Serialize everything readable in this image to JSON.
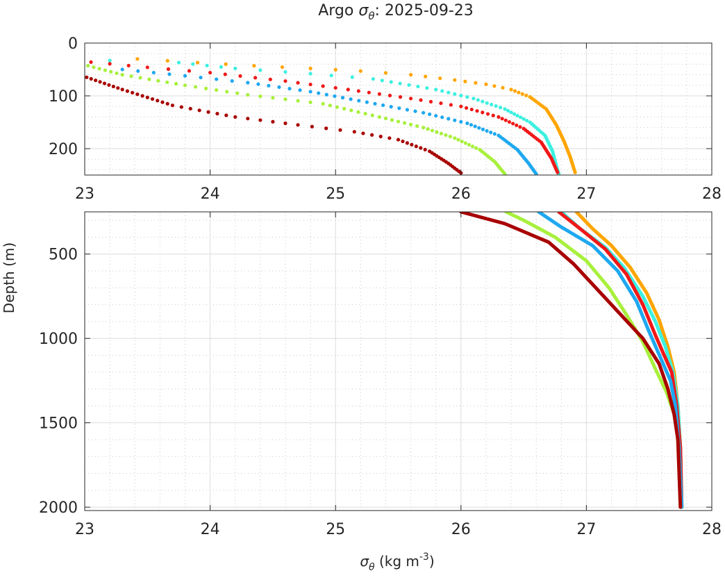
{
  "chart_data": {
    "type": "scatter",
    "title": {
      "prefix": "Argo ",
      "symbol": "σ",
      "subscript": "θ",
      "suffix": ": 2025-09-23"
    },
    "xlabel": {
      "symbol": "σ",
      "subscript": "θ",
      "unit_prefix": " (kg m",
      "superscript": "-3",
      "unit_suffix": ")"
    },
    "ylabel": "Depth (m)",
    "grid": true,
    "panels": [
      {
        "name": "upper",
        "xlim": [
          23,
          28
        ],
        "ylim": [
          0,
          250
        ],
        "y_reversed": true,
        "xticks": [
          "23",
          "24",
          "25",
          "26",
          "27",
          "28"
        ],
        "yticks": [
          "0",
          "100",
          "200"
        ],
        "xtick_values": [
          23,
          24,
          25,
          26,
          27,
          28
        ],
        "ytick_values": [
          0,
          100,
          200
        ],
        "xminor": [
          23.2,
          23.4,
          23.6,
          23.8,
          24.2,
          24.4,
          24.6,
          24.8,
          25.2,
          25.4,
          25.6,
          25.8,
          26.2,
          26.4,
          26.6,
          26.8,
          27.2,
          27.4,
          27.6,
          27.8
        ],
        "yminor": [
          20,
          40,
          60,
          80,
          120,
          140,
          160,
          180,
          220,
          240
        ]
      },
      {
        "name": "lower",
        "xlim": [
          23,
          28
        ],
        "ylim": [
          250,
          2020
        ],
        "y_reversed": true,
        "xticks": [
          "23",
          "24",
          "25",
          "26",
          "27",
          "28"
        ],
        "yticks": [
          "500",
          "1000",
          "1500",
          "2000"
        ],
        "xtick_values": [
          23,
          24,
          25,
          26,
          27,
          28
        ],
        "ytick_values": [
          500,
          1000,
          1500,
          2000
        ],
        "xminor": [
          23.2,
          23.4,
          23.6,
          23.8,
          24.2,
          24.4,
          24.6,
          24.8,
          25.2,
          25.4,
          25.6,
          25.8,
          26.2,
          26.4,
          26.6,
          26.8,
          27.2,
          27.4,
          27.6,
          27.8
        ],
        "yminor": [
          300,
          400,
          600,
          700,
          800,
          900,
          1100,
          1200,
          1300,
          1400,
          1600,
          1700,
          1800,
          1900
        ]
      }
    ],
    "series": [
      {
        "name": "profile-orange",
        "color": "#FFA500",
        "upper": [
          [
            23.42,
            30
          ],
          [
            23.9,
            37
          ],
          [
            24.35,
            43
          ],
          [
            24.8,
            48
          ],
          [
            25.2,
            53
          ],
          [
            25.6,
            60
          ],
          [
            25.95,
            70
          ],
          [
            26.2,
            78
          ],
          [
            26.4,
            88
          ],
          [
            26.55,
            102
          ],
          [
            26.68,
            125
          ],
          [
            26.76,
            155
          ],
          [
            26.82,
            185
          ],
          [
            26.87,
            215
          ],
          [
            26.91,
            245
          ]
        ],
        "lower": [
          [
            26.92,
            250
          ],
          [
            27.05,
            350
          ],
          [
            27.2,
            450
          ],
          [
            27.35,
            580
          ],
          [
            27.48,
            730
          ],
          [
            27.58,
            890
          ],
          [
            27.65,
            1050
          ],
          [
            27.7,
            1200
          ],
          [
            27.73,
            1400
          ],
          [
            27.75,
            1650
          ],
          [
            27.76,
            2000
          ]
        ]
      },
      {
        "name": "profile-cyan",
        "color": "#3CF0E0",
        "upper": [
          [
            23.2,
            33
          ],
          [
            23.75,
            37
          ],
          [
            24.2,
            48
          ],
          [
            24.8,
            58
          ],
          [
            25.3,
            68
          ],
          [
            25.8,
            88
          ],
          [
            26.1,
            105
          ],
          [
            26.35,
            125
          ],
          [
            26.55,
            150
          ],
          [
            26.67,
            175
          ],
          [
            26.73,
            205
          ],
          [
            26.76,
            232
          ],
          [
            26.78,
            248
          ]
        ],
        "lower": [
          [
            26.8,
            250
          ],
          [
            26.95,
            350
          ],
          [
            27.15,
            460
          ],
          [
            27.3,
            580
          ],
          [
            27.45,
            750
          ],
          [
            27.55,
            900
          ],
          [
            27.63,
            1050
          ],
          [
            27.69,
            1200
          ],
          [
            27.73,
            1400
          ],
          [
            27.75,
            1650
          ],
          [
            27.76,
            2000
          ]
        ]
      },
      {
        "name": "profile-red",
        "color": "#F01818",
        "upper": [
          [
            23.05,
            36
          ],
          [
            23.5,
            46
          ],
          [
            24.0,
            56
          ],
          [
            24.6,
            72
          ],
          [
            25.1,
            88
          ],
          [
            25.6,
            105
          ],
          [
            26.0,
            120
          ],
          [
            26.3,
            140
          ],
          [
            26.5,
            162
          ],
          [
            26.64,
            188
          ],
          [
            26.72,
            218
          ],
          [
            26.77,
            245
          ]
        ],
        "lower": [
          [
            26.78,
            250
          ],
          [
            26.95,
            350
          ],
          [
            27.15,
            470
          ],
          [
            27.32,
            620
          ],
          [
            27.45,
            800
          ],
          [
            27.55,
            980
          ],
          [
            27.62,
            1100
          ],
          [
            27.68,
            1200
          ],
          [
            27.72,
            1400
          ],
          [
            27.75,
            1650
          ],
          [
            27.76,
            2000
          ]
        ]
      },
      {
        "name": "profile-blue",
        "color": "#1EA8F0",
        "upper": [
          [
            23.3,
            50
          ],
          [
            23.8,
            62
          ],
          [
            24.3,
            75
          ],
          [
            24.8,
            92
          ],
          [
            25.25,
            112
          ],
          [
            25.7,
            132
          ],
          [
            26.05,
            152
          ],
          [
            26.3,
            175
          ],
          [
            26.45,
            202
          ],
          [
            26.54,
            228
          ],
          [
            26.6,
            248
          ]
        ],
        "lower": [
          [
            26.62,
            250
          ],
          [
            26.8,
            340
          ],
          [
            27.05,
            450
          ],
          [
            27.25,
            600
          ],
          [
            27.4,
            780
          ],
          [
            27.5,
            960
          ],
          [
            27.6,
            1130
          ],
          [
            27.67,
            1250
          ],
          [
            27.71,
            1400
          ],
          [
            27.74,
            1650
          ],
          [
            27.76,
            2000
          ]
        ]
      },
      {
        "name": "profile-lime",
        "color": "#A8F03C",
        "upper": [
          [
            22.98,
            40
          ],
          [
            23.3,
            60
          ],
          [
            23.8,
            80
          ],
          [
            24.3,
            98
          ],
          [
            24.9,
            115
          ],
          [
            25.35,
            140
          ],
          [
            25.7,
            160
          ],
          [
            25.95,
            180
          ],
          [
            26.15,
            202
          ],
          [
            26.27,
            225
          ],
          [
            26.35,
            248
          ]
        ],
        "lower": [
          [
            26.36,
            250
          ],
          [
            26.5,
            300
          ],
          [
            26.75,
            400
          ],
          [
            27.0,
            540
          ],
          [
            27.18,
            700
          ],
          [
            27.32,
            860
          ],
          [
            27.45,
            1020
          ],
          [
            27.55,
            1180
          ],
          [
            27.64,
            1320
          ],
          [
            27.7,
            1450
          ],
          [
            27.73,
            1600
          ],
          [
            27.74,
            1800
          ],
          [
            27.75,
            2000
          ]
        ]
      },
      {
        "name": "profile-darkred",
        "color": "#A80000",
        "upper": [
          [
            22.98,
            62
          ],
          [
            23.3,
            88
          ],
          [
            23.7,
            118
          ],
          [
            24.2,
            140
          ],
          [
            24.7,
            155
          ],
          [
            25.15,
            168
          ],
          [
            25.5,
            183
          ],
          [
            25.75,
            205
          ],
          [
            25.9,
            228
          ],
          [
            26.0,
            246
          ]
        ],
        "lower": [
          [
            26.0,
            250
          ],
          [
            26.35,
            320
          ],
          [
            26.7,
            430
          ],
          [
            26.9,
            560
          ],
          [
            27.1,
            720
          ],
          [
            27.3,
            880
          ],
          [
            27.45,
            1000
          ],
          [
            27.58,
            1150
          ],
          [
            27.65,
            1300
          ],
          [
            27.7,
            1450
          ],
          [
            27.73,
            1600
          ],
          [
            27.75,
            2000
          ]
        ]
      }
    ]
  }
}
